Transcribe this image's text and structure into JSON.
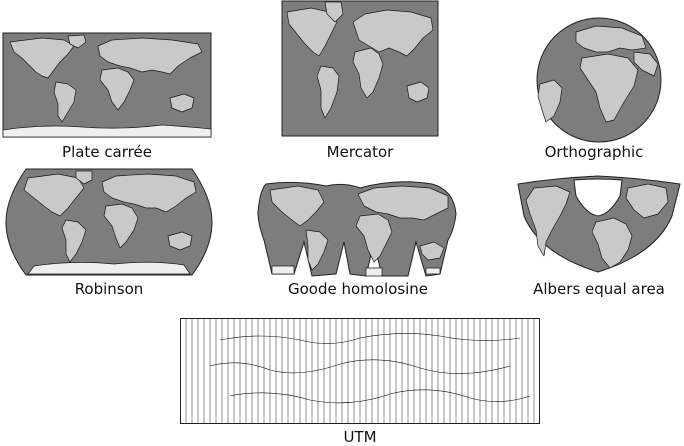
{
  "figure": {
    "projections": [
      {
        "id": "plate-carree",
        "label": "Plate carrée"
      },
      {
        "id": "mercator",
        "label": "Mercator"
      },
      {
        "id": "orthographic",
        "label": "Orthographic"
      },
      {
        "id": "robinson",
        "label": "Robinson"
      },
      {
        "id": "goode",
        "label": "Goode homolosine"
      },
      {
        "id": "albers",
        "label": "Albers equal area"
      },
      {
        "id": "utm",
        "label": "UTM"
      }
    ]
  },
  "colors": {
    "ocean": "#7d7d7d",
    "land": "#c9c9c9",
    "ice": "#efefef",
    "outline": "#1a1a1a"
  }
}
